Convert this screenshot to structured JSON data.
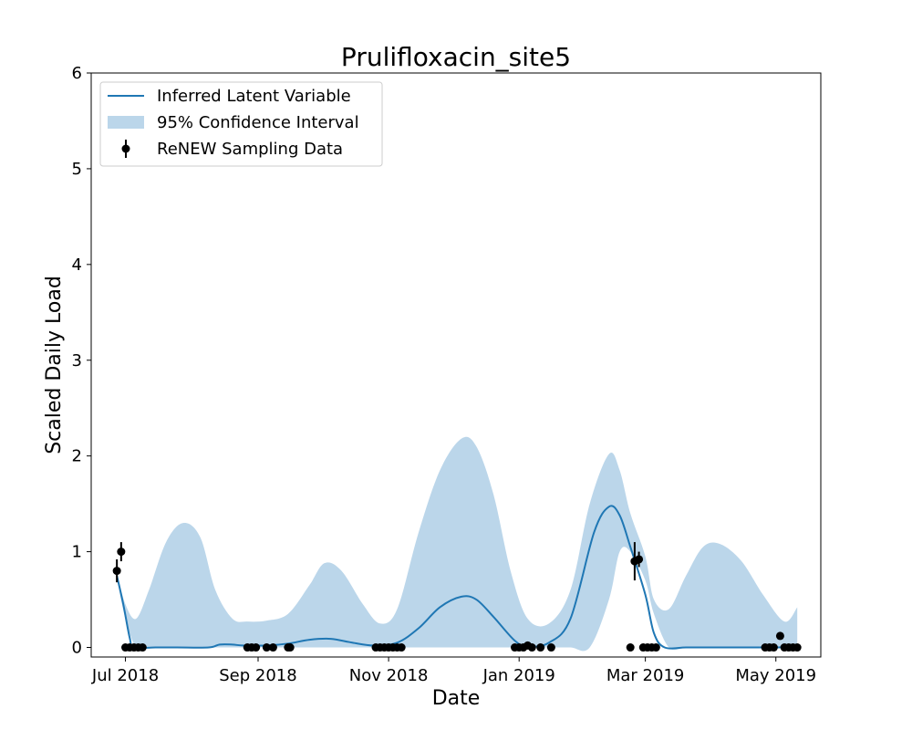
{
  "chart_data": {
    "type": "line",
    "title": "Prulifloxacin_site5",
    "xlabel": "Date",
    "ylabel": "Scaled Daily Load",
    "xlim": [
      "2018-06-15",
      "2019-05-22"
    ],
    "ylim": [
      -0.1,
      6
    ],
    "xticks": [
      "2018-07-01",
      "2018-09-01",
      "2018-11-01",
      "2019-01-01",
      "2019-03-01",
      "2019-05-01"
    ],
    "xtick_labels": [
      "Jul 2018",
      "Sep 2018",
      "Nov 2018",
      "Jan 2019",
      "Mar 2019",
      "May 2019"
    ],
    "yticks": [
      0,
      1,
      2,
      3,
      4,
      5,
      6
    ],
    "ytick_labels": [
      "0",
      "1",
      "2",
      "3",
      "4",
      "5",
      "6"
    ],
    "legend_position": "top-left",
    "grid": false,
    "colors": {
      "line": "#1f77b4",
      "band": "#bbd6ea",
      "points": "#000000"
    },
    "legend": {
      "line": "Inferred Latent Variable",
      "band": "95% Confidence Interval",
      "points": "ReNEW Sampling Data"
    },
    "series": [
      {
        "name": "Inferred Latent Variable",
        "kind": "line",
        "x": [
          "2018-06-27",
          "2018-06-30",
          "2018-07-03",
          "2018-07-05",
          "2018-07-15",
          "2018-07-25",
          "2018-08-09",
          "2018-08-14",
          "2018-08-20",
          "2018-08-25",
          "2018-09-05",
          "2018-09-15",
          "2018-09-25",
          "2018-10-05",
          "2018-10-15",
          "2018-10-25",
          "2018-11-05",
          "2018-11-15",
          "2018-11-25",
          "2018-12-05",
          "2018-12-12",
          "2018-12-20",
          "2018-12-30",
          "2019-01-05",
          "2019-01-15",
          "2019-01-25",
          "2019-02-05",
          "2019-02-12",
          "2019-02-17",
          "2019-02-22",
          "2019-03-01",
          "2019-03-05",
          "2019-03-10",
          "2019-03-20",
          "2019-04-01",
          "2019-04-20",
          "2019-05-01",
          "2019-05-11"
        ],
        "y": [
          0.75,
          0.45,
          0.1,
          0.0,
          0.0,
          0.0,
          0.0,
          0.03,
          0.03,
          0.02,
          0.02,
          0.04,
          0.08,
          0.09,
          0.05,
          0.02,
          0.05,
          0.2,
          0.42,
          0.53,
          0.5,
          0.32,
          0.07,
          0.01,
          0.05,
          0.3,
          1.2,
          1.47,
          1.38,
          1.05,
          0.55,
          0.15,
          0.0,
          0.0,
          0.0,
          0.0,
          0.0,
          0.01
        ]
      },
      {
        "name": "95% Confidence Interval",
        "kind": "band",
        "x": [
          "2018-06-27",
          "2018-07-01",
          "2018-07-06",
          "2018-07-12",
          "2018-07-20",
          "2018-07-28",
          "2018-08-05",
          "2018-08-12",
          "2018-08-20",
          "2018-08-27",
          "2018-09-05",
          "2018-09-15",
          "2018-09-25",
          "2018-10-02",
          "2018-10-10",
          "2018-10-20",
          "2018-10-28",
          "2018-11-05",
          "2018-11-15",
          "2018-11-25",
          "2018-12-05",
          "2018-12-12",
          "2018-12-20",
          "2018-12-28",
          "2019-01-05",
          "2019-01-15",
          "2019-01-25",
          "2019-02-03",
          "2019-02-12",
          "2019-02-17",
          "2019-02-22",
          "2019-03-01",
          "2019-03-05",
          "2019-03-12",
          "2019-03-20",
          "2019-03-28",
          "2019-04-05",
          "2019-04-15",
          "2019-04-25",
          "2019-05-05",
          "2019-05-11"
        ],
        "lower": [
          0.72,
          0.3,
          0.0,
          0.0,
          0.0,
          0.0,
          0.0,
          0.0,
          0.0,
          0.0,
          0.0,
          0.0,
          0.0,
          0.0,
          0.0,
          0.0,
          0.0,
          0.0,
          0.0,
          0.0,
          0.0,
          0.0,
          0.0,
          0.0,
          0.0,
          0.0,
          0.0,
          0.0,
          0.5,
          1.0,
          1.0,
          0.7,
          0.35,
          0.0,
          0.0,
          0.0,
          0.0,
          0.0,
          0.0,
          0.0,
          0.0
        ],
        "upper": [
          0.78,
          0.45,
          0.3,
          0.6,
          1.1,
          1.3,
          1.15,
          0.6,
          0.3,
          0.27,
          0.28,
          0.35,
          0.65,
          0.88,
          0.8,
          0.45,
          0.25,
          0.4,
          1.2,
          1.85,
          2.18,
          2.1,
          1.6,
          0.8,
          0.3,
          0.25,
          0.6,
          1.5,
          2.02,
          1.85,
          1.4,
          0.95,
          0.5,
          0.4,
          0.75,
          1.05,
          1.08,
          0.9,
          0.55,
          0.27,
          0.42
        ]
      },
      {
        "name": "ReNEW Sampling Data",
        "kind": "scatter",
        "points": [
          {
            "x": "2018-06-27",
            "y": 0.8,
            "err": 0.12
          },
          {
            "x": "2018-06-29",
            "y": 1.0,
            "err": 0.1
          },
          {
            "x": "2018-07-01",
            "y": 0.0
          },
          {
            "x": "2018-07-03",
            "y": 0.0
          },
          {
            "x": "2018-07-05",
            "y": 0.0
          },
          {
            "x": "2018-07-07",
            "y": 0.0
          },
          {
            "x": "2018-07-09",
            "y": 0.0
          },
          {
            "x": "2018-08-27",
            "y": 0.0
          },
          {
            "x": "2018-08-29",
            "y": 0.0
          },
          {
            "x": "2018-08-31",
            "y": 0.0
          },
          {
            "x": "2018-09-05",
            "y": 0.0
          },
          {
            "x": "2018-09-08",
            "y": 0.0
          },
          {
            "x": "2018-09-15",
            "y": 0.0
          },
          {
            "x": "2018-09-16",
            "y": 0.0
          },
          {
            "x": "2018-10-26",
            "y": 0.0
          },
          {
            "x": "2018-10-28",
            "y": 0.0
          },
          {
            "x": "2018-10-30",
            "y": 0.0
          },
          {
            "x": "2018-11-01",
            "y": 0.0
          },
          {
            "x": "2018-11-03",
            "y": 0.0
          },
          {
            "x": "2018-11-05",
            "y": 0.0
          },
          {
            "x": "2018-11-07",
            "y": 0.0
          },
          {
            "x": "2018-12-30",
            "y": 0.0
          },
          {
            "x": "2019-01-01",
            "y": 0.0
          },
          {
            "x": "2019-01-03",
            "y": 0.0
          },
          {
            "x": "2019-01-05",
            "y": 0.02
          },
          {
            "x": "2019-01-07",
            "y": 0.0
          },
          {
            "x": "2019-01-11",
            "y": 0.0
          },
          {
            "x": "2019-01-16",
            "y": 0.0
          },
          {
            "x": "2019-02-22",
            "y": 0.0
          },
          {
            "x": "2019-02-24",
            "y": 0.9,
            "err": 0.2
          },
          {
            "x": "2019-02-26",
            "y": 0.92,
            "err": 0.08
          },
          {
            "x": "2019-02-28",
            "y": 0.0
          },
          {
            "x": "2019-03-02",
            "y": 0.0
          },
          {
            "x": "2019-03-04",
            "y": 0.0
          },
          {
            "x": "2019-03-06",
            "y": 0.0
          },
          {
            "x": "2019-04-26",
            "y": 0.0
          },
          {
            "x": "2019-04-28",
            "y": 0.0
          },
          {
            "x": "2019-04-30",
            "y": 0.0
          },
          {
            "x": "2019-05-03",
            "y": 0.12
          },
          {
            "x": "2019-05-05",
            "y": 0.0
          },
          {
            "x": "2019-05-07",
            "y": 0.0
          },
          {
            "x": "2019-05-09",
            "y": 0.0
          },
          {
            "x": "2019-05-11",
            "y": 0.0
          }
        ]
      }
    ]
  }
}
